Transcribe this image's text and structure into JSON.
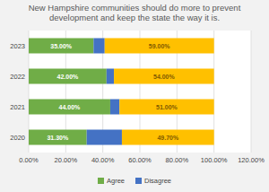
{
  "chart_data": {
    "type": "bar",
    "orientation": "horizontal",
    "stacked": true,
    "title": "New Hampshire communities should do more to prevent\ndevelopment and keep the state the way it is.",
    "categories": [
      "2023",
      "2022",
      "2021",
      "2020"
    ],
    "series": [
      {
        "name": "Agree",
        "color": "#70AD47",
        "values": [
          0.35,
          0.42,
          0.44,
          0.313
        ],
        "data_labels": true,
        "value_labels": [
          "35.00%",
          "42.00%",
          "44.00%",
          "31.30%"
        ]
      },
      {
        "name": "Disagree",
        "color": "#4472C4",
        "values": [
          0.06,
          0.04,
          0.05,
          0.19
        ],
        "data_labels": false
      },
      {
        "color": "#FFC000",
        "values": [
          0.59,
          0.54,
          0.51,
          0.497
        ],
        "data_labels": true,
        "value_labels": [
          "59.00%",
          "54.00%",
          "51.00%",
          "49.70%"
        ]
      }
    ],
    "xlim": [
      0.0,
      1.2
    ],
    "xticks": [
      {
        "value": 0.0,
        "label": "0.00%"
      },
      {
        "value": 0.2,
        "label": "20.00%"
      },
      {
        "value": 0.4,
        "label": "40.00%"
      },
      {
        "value": 0.6,
        "label": "60.00%"
      },
      {
        "value": 0.8,
        "label": "80.00%"
      },
      {
        "value": 1.0,
        "label": "100.00%"
      },
      {
        "value": 1.2,
        "label": "120.00%"
      }
    ],
    "grid": true,
    "legend": "bottom"
  }
}
